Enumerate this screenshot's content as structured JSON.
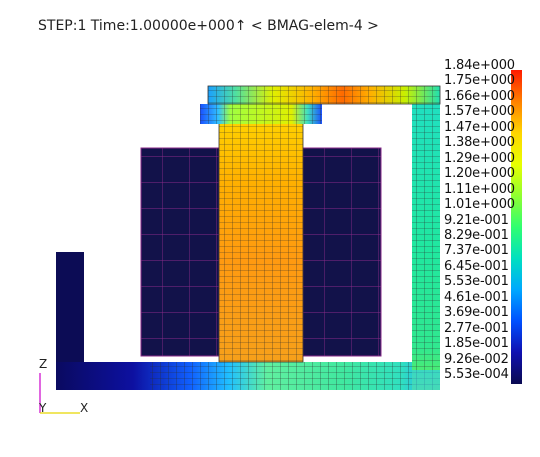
{
  "header": {
    "step_time": "STEP:1 Time:1.00000e+000↑ < BMAG-elem-4 >"
  },
  "axes": {
    "z_label": "Z",
    "y_label": "Y",
    "x_label": "X",
    "z_color": "#cc00cc",
    "x_color": "#e8d800"
  },
  "color_scale": {
    "values": [
      "1.84e+000",
      "1.75e+000",
      "1.66e+000",
      "1.57e+000",
      "1.47e+000",
      "1.38e+000",
      "1.29e+000",
      "1.20e+000",
      "1.11e+000",
      "1.01e+000",
      "9.21e-001",
      "8.29e-001",
      "7.37e-001",
      "6.45e-001",
      "5.53e-001",
      "4.61e-001",
      "3.69e-001",
      "2.77e-001",
      "1.85e-001",
      "9.26e-002",
      "5.53e-004"
    ],
    "gradient": [
      "#ff1a00",
      "#ff8000",
      "#ffd500",
      "#f5ff00",
      "#a0ff20",
      "#30ff60",
      "#00e0b0",
      "#00b0ff",
      "#0060ff",
      "#1010c0",
      "#0a0a55"
    ]
  },
  "colors": {
    "core_dark": "#12124a",
    "core_grid": "#8a2a8a",
    "coil_fill": "#f7a01a",
    "mesh_line": "#222222"
  }
}
